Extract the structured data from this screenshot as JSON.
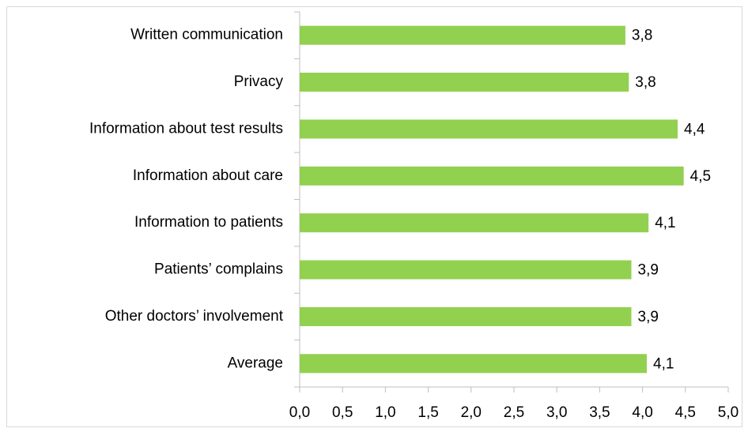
{
  "chart_data": {
    "type": "bar",
    "orientation": "horizontal",
    "categories": [
      "Written communication",
      "Privacy",
      "Information about test results",
      "Information about care",
      "Information to patients",
      "Patients’ complains",
      "Other doctors’ involvement",
      "Average"
    ],
    "values": [
      3.8,
      3.84,
      4.41,
      4.48,
      4.07,
      3.87,
      3.87,
      4.05
    ],
    "value_labels": [
      "3,8",
      "3,8",
      "4,4",
      "4,5",
      "4,1",
      "3,9",
      "3,9",
      "4,1"
    ],
    "color": "#92d050",
    "xlim": [
      0,
      5
    ],
    "xticks": [
      {
        "value": 0,
        "label": "0,0"
      },
      {
        "value": 0.5,
        "label": "0,5"
      },
      {
        "value": 1,
        "label": "1,0"
      },
      {
        "value": 1.5,
        "label": "1,5"
      },
      {
        "value": 2,
        "label": "2,0"
      },
      {
        "value": 2.5,
        "label": "2,5"
      },
      {
        "value": 3,
        "label": "3,0"
      },
      {
        "value": 3.5,
        "label": "3,5"
      },
      {
        "value": 4,
        "label": "4,0"
      },
      {
        "value": 4.5,
        "label": "4,5"
      },
      {
        "value": 5,
        "label": "5,0"
      }
    ],
    "grid": false
  }
}
